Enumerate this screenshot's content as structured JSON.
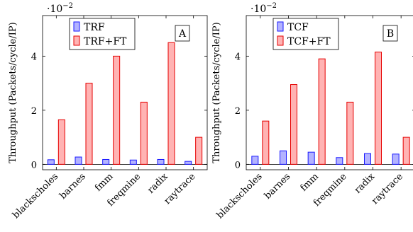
{
  "chart_data": [
    {
      "type": "bar",
      "panel_label": "A",
      "ylabel": "Throughput (Packets/cycle/IP)",
      "scale_label": "·10",
      "scale_exp": "−2",
      "categories": [
        "blackscholes",
        "barnes",
        "fmm",
        "freqmine",
        "radix",
        "raytrace"
      ],
      "yticks": [
        "0",
        "2",
        "4"
      ],
      "ylim": [
        -0.2,
        5.5
      ],
      "grid": false,
      "legend_position": "top-left",
      "series": [
        {
          "name": "TRF",
          "values": [
            0.17,
            0.27,
            0.18,
            0.16,
            0.18,
            0.11
          ]
        },
        {
          "name": "TRF+FT",
          "values": [
            1.65,
            3.0,
            4.0,
            2.3,
            4.5,
            1.0
          ]
        }
      ]
    },
    {
      "type": "bar",
      "panel_label": "B",
      "ylabel": "Throughput (Packets/cycle/IP)",
      "scale_label": "·10",
      "scale_exp": "−2",
      "categories": [
        "blackscholes",
        "barnes",
        "fmm",
        "freqmine",
        "radix",
        "raytrace"
      ],
      "yticks": [
        "0",
        "2",
        "4"
      ],
      "ylim": [
        -0.2,
        5.5
      ],
      "grid": false,
      "legend_position": "top-left",
      "series": [
        {
          "name": "TCF",
          "values": [
            0.3,
            0.5,
            0.45,
            0.25,
            0.4,
            0.38
          ]
        },
        {
          "name": "TCF+FT",
          "values": [
            1.6,
            2.95,
            3.9,
            2.3,
            4.15,
            1.0
          ]
        }
      ]
    }
  ],
  "colors": {
    "series1_fill": "#b3b3ff",
    "series1_stroke": "#1a1aff",
    "series2_fill": "#ffb3b3",
    "series2_stroke": "#e60000"
  }
}
